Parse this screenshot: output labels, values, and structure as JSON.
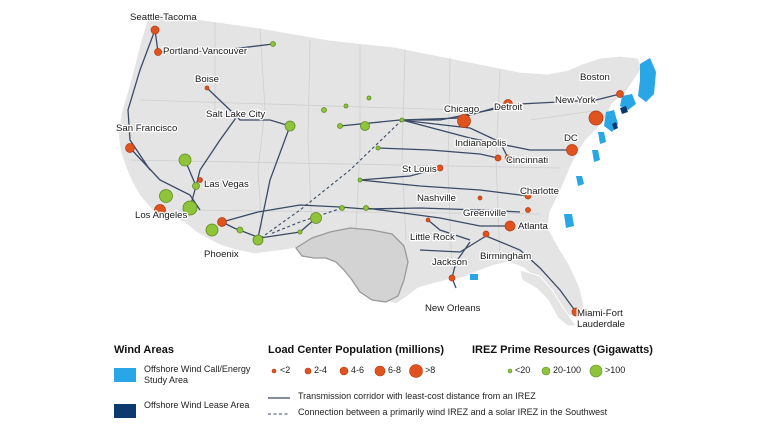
{
  "cities": [
    {
      "label": "Seattle-Tacoma"
    },
    {
      "label": "Portland-Vancouver"
    },
    {
      "label": "Boise"
    },
    {
      "label": "Salt Lake City"
    },
    {
      "label": "San Francisco"
    },
    {
      "label": "Las Vegas"
    },
    {
      "label": "Los Angeles"
    },
    {
      "label": "Phoenix"
    },
    {
      "label": "Chicago"
    },
    {
      "label": "Detroit"
    },
    {
      "label": "Indianapolis"
    },
    {
      "label": "Cincinnati"
    },
    {
      "label": "St Louis"
    },
    {
      "label": "Nashville"
    },
    {
      "label": "Charlotte"
    },
    {
      "label": "Greenville"
    },
    {
      "label": "Atlanta"
    },
    {
      "label": "Little Rock"
    },
    {
      "label": "Birmingham"
    },
    {
      "label": "Jackson"
    },
    {
      "label": "New Orleans"
    },
    {
      "label": "Boston"
    },
    {
      "label": "New York"
    },
    {
      "label": "DC"
    },
    {
      "label": "Miami-Fort Lauderdale"
    }
  ],
  "legend": {
    "wind": {
      "title": "Wind Areas",
      "call_area": "Offshore Wind Call/Energy Study Area",
      "lease_area": "Offshore Wind Lease Area",
      "call_color": "#29a6e6",
      "lease_color": "#0d3a6e"
    },
    "load": {
      "title": "Load Center Population (millions)",
      "classes": [
        "<2",
        "2-4",
        "4-6",
        "6-8",
        ">8"
      ],
      "color": "#e0531f"
    },
    "irez": {
      "title": "IREZ Prime Resources (Gigawatts)",
      "classes": [
        "<20",
        "20-100",
        ">100"
      ],
      "color": "#8fc43a"
    },
    "lines": {
      "solid": "Transmission corridor with least-cost distance from an IREZ",
      "dashed": "Connection between a primarily wind IREZ and a solar IREZ in the Southwest"
    }
  }
}
